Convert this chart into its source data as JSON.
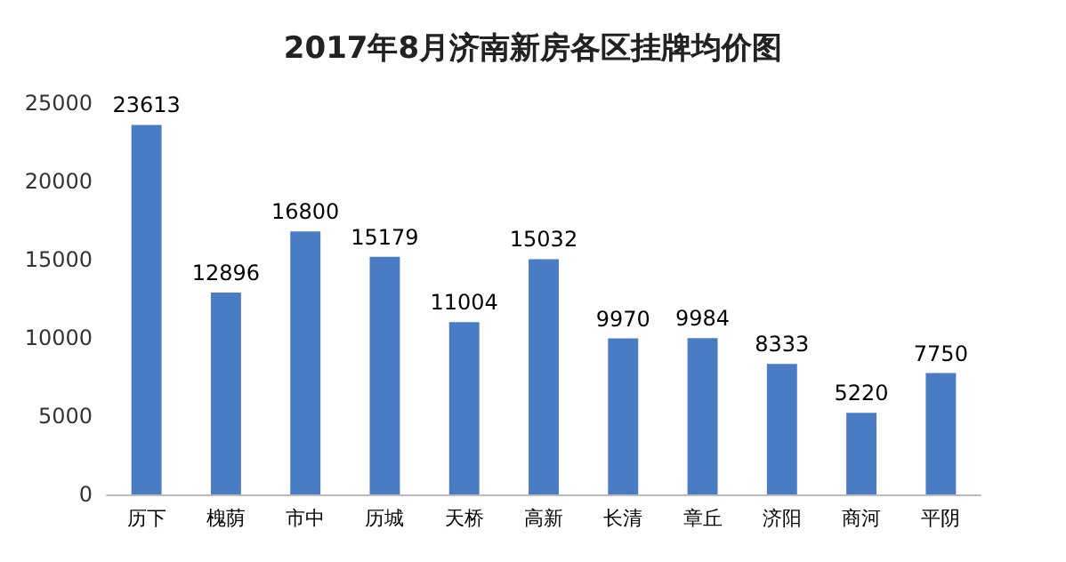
{
  "chart_data": {
    "type": "bar",
    "title": "2017年8月济南新房各区挂牌均价图",
    "categories": [
      "历下",
      "槐荫",
      "市中",
      "历城",
      "天桥",
      "高新",
      "长清",
      "章丘",
      "济阳",
      "商河",
      "平阴"
    ],
    "values": [
      23613,
      12896,
      16800,
      15179,
      11004,
      15032,
      9970,
      9984,
      8333,
      5220,
      7750
    ],
    "color": "#4a7cc4",
    "ylim": [
      0,
      25000
    ],
    "yticks": [
      0,
      5000,
      10000,
      15000,
      20000,
      25000
    ],
    "grid": false,
    "data_labels": true
  }
}
